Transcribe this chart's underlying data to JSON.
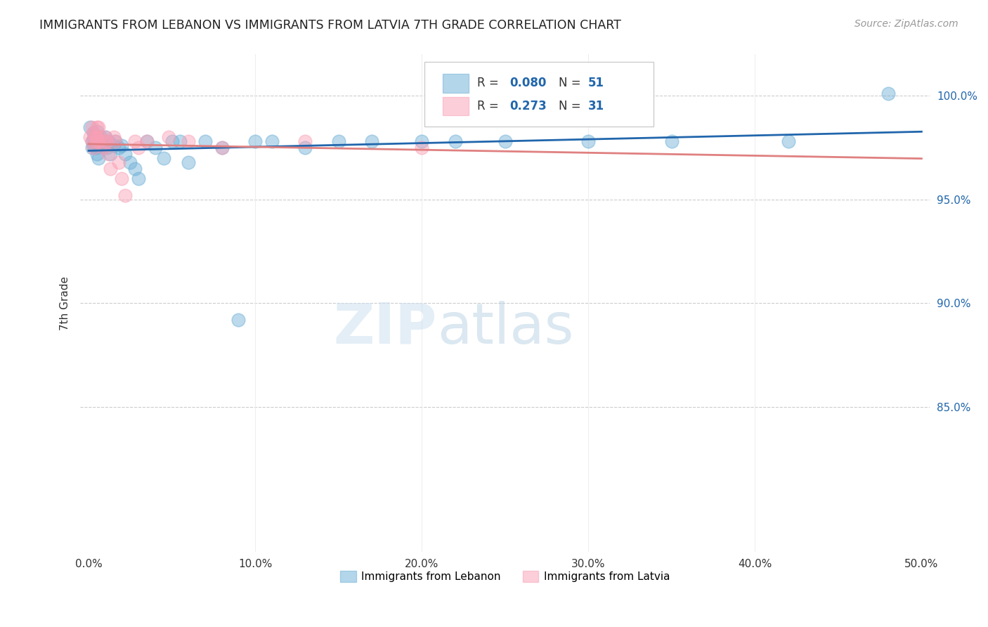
{
  "title": "IMMIGRANTS FROM LEBANON VS IMMIGRANTS FROM LATVIA 7TH GRADE CORRELATION CHART",
  "source": "Source: ZipAtlas.com",
  "ylabel": "7th Grade",
  "ytick_values": [
    0.85,
    0.9,
    0.95,
    1.0
  ],
  "ytick_labels": [
    "85.0%",
    "90.0%",
    "95.0%",
    "100.0%"
  ],
  "xtick_values": [
    0.0,
    0.1,
    0.2,
    0.3,
    0.4,
    0.5
  ],
  "xtick_labels": [
    "0.0%",
    "10.0%",
    "20.0%",
    "30.0%",
    "40.0%",
    "50.0%"
  ],
  "xlim": [
    -0.005,
    0.505
  ],
  "ylim": [
    0.78,
    1.02
  ],
  "legend_r1": "R = 0.080",
  "legend_n1": "N = 51",
  "legend_r2": "R = 0.273",
  "legend_n2": "N = 31",
  "color_blue": "#6baed6",
  "color_pink": "#fa9fb5",
  "color_line_blue": "#2166ac",
  "color_line_pink": "#e08080",
  "watermark_zip": "ZIP",
  "watermark_atlas": "atlas",
  "lebanon_x": [
    0.001,
    0.002,
    0.002,
    0.003,
    0.003,
    0.003,
    0.004,
    0.004,
    0.004,
    0.005,
    0.005,
    0.005,
    0.006,
    0.006,
    0.007,
    0.008,
    0.009,
    0.01,
    0.01,
    0.011,
    0.012,
    0.013,
    0.015,
    0.016,
    0.018,
    0.02,
    0.022,
    0.025,
    0.028,
    0.03,
    0.035,
    0.04,
    0.045,
    0.05,
    0.055,
    0.06,
    0.07,
    0.08,
    0.09,
    0.1,
    0.11,
    0.13,
    0.15,
    0.17,
    0.2,
    0.22,
    0.25,
    0.3,
    0.35,
    0.42,
    0.48
  ],
  "lebanon_y": [
    0.985,
    0.978,
    0.975,
    0.982,
    0.979,
    0.976,
    0.98,
    0.978,
    0.975,
    0.983,
    0.978,
    0.972,
    0.976,
    0.97,
    0.98,
    0.978,
    0.975,
    0.98,
    0.976,
    0.975,
    0.978,
    0.972,
    0.976,
    0.978,
    0.975,
    0.976,
    0.972,
    0.968,
    0.965,
    0.96,
    0.978,
    0.975,
    0.97,
    0.978,
    0.978,
    0.968,
    0.978,
    0.975,
    0.892,
    0.978,
    0.978,
    0.975,
    0.978,
    0.978,
    0.978,
    0.978,
    0.978,
    0.978,
    0.978,
    0.978,
    1.001
  ],
  "latvia_x": [
    0.001,
    0.002,
    0.002,
    0.003,
    0.003,
    0.004,
    0.004,
    0.005,
    0.005,
    0.006,
    0.006,
    0.007,
    0.008,
    0.009,
    0.01,
    0.011,
    0.012,
    0.013,
    0.015,
    0.016,
    0.018,
    0.02,
    0.022,
    0.028,
    0.03,
    0.035,
    0.048,
    0.06,
    0.08,
    0.13,
    0.2
  ],
  "latvia_y": [
    0.98,
    0.985,
    0.978,
    0.982,
    0.975,
    0.98,
    0.978,
    0.985,
    0.98,
    0.985,
    0.978,
    0.98,
    0.978,
    0.975,
    0.98,
    0.978,
    0.972,
    0.965,
    0.98,
    0.978,
    0.968,
    0.96,
    0.952,
    0.978,
    0.975,
    0.978,
    0.98,
    0.978,
    0.975,
    0.978,
    0.975
  ]
}
